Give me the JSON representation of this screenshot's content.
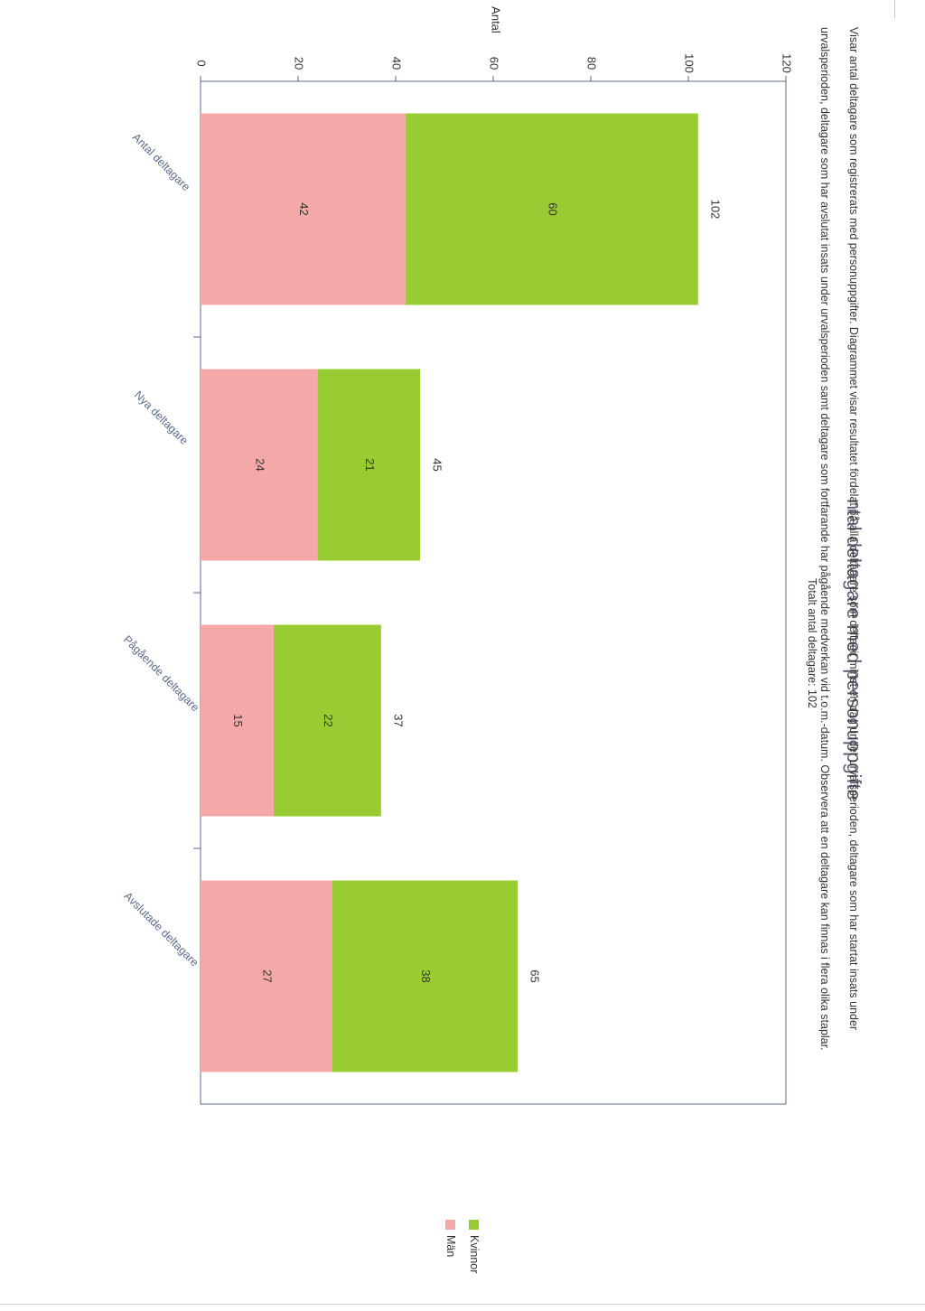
{
  "title": "ntal deltagare med personuppgifte",
  "description_lines": [
    "Visar antal deltagare som registrerats med personuppgifter. Diagrammet visar resultatet fördelat på alla deltagare som deltagit minst en dag under urvalsperioden, deltagare som har startat insats under",
    "urvalsperioden, deltagare som har avslutat insats under urvalsperioden samt deltagare som fortfarande har pågående medverkan vid t.o.m.-datum. Observera att en deltagare kan finnas i flera olika staplar."
  ],
  "total_label": "Totalt antal deltagare: 102",
  "colors": {
    "kvinnor": "#99cc33",
    "man": "#f4a9a8",
    "axis": "#5b6b8c",
    "text": "#333333"
  },
  "chart_data": {
    "type": "bar",
    "stacked": true,
    "orientation": "vertical bars, page scanned rotated 90 degrees",
    "ylabel": "Antal",
    "xlabel": "",
    "ylim": [
      0,
      120
    ],
    "yticks": [
      "0",
      "20",
      "40",
      "60",
      "80",
      "100",
      "120"
    ],
    "categories": [
      "Antal deltagare",
      "Nya deltagare",
      "Pågående deltagare",
      "Avslutade deltagare"
    ],
    "series": [
      {
        "name": "Män",
        "values": [
          42,
          24,
          15,
          27
        ],
        "color": "#f4a9a8"
      },
      {
        "name": "Kvinnor",
        "values": [
          60,
          21,
          22,
          38
        ],
        "color": "#99cc33"
      }
    ],
    "totals": [
      102,
      45,
      37,
      65
    ],
    "legend": [
      "Kvinnor",
      "Män"
    ],
    "legend_position": "right"
  }
}
